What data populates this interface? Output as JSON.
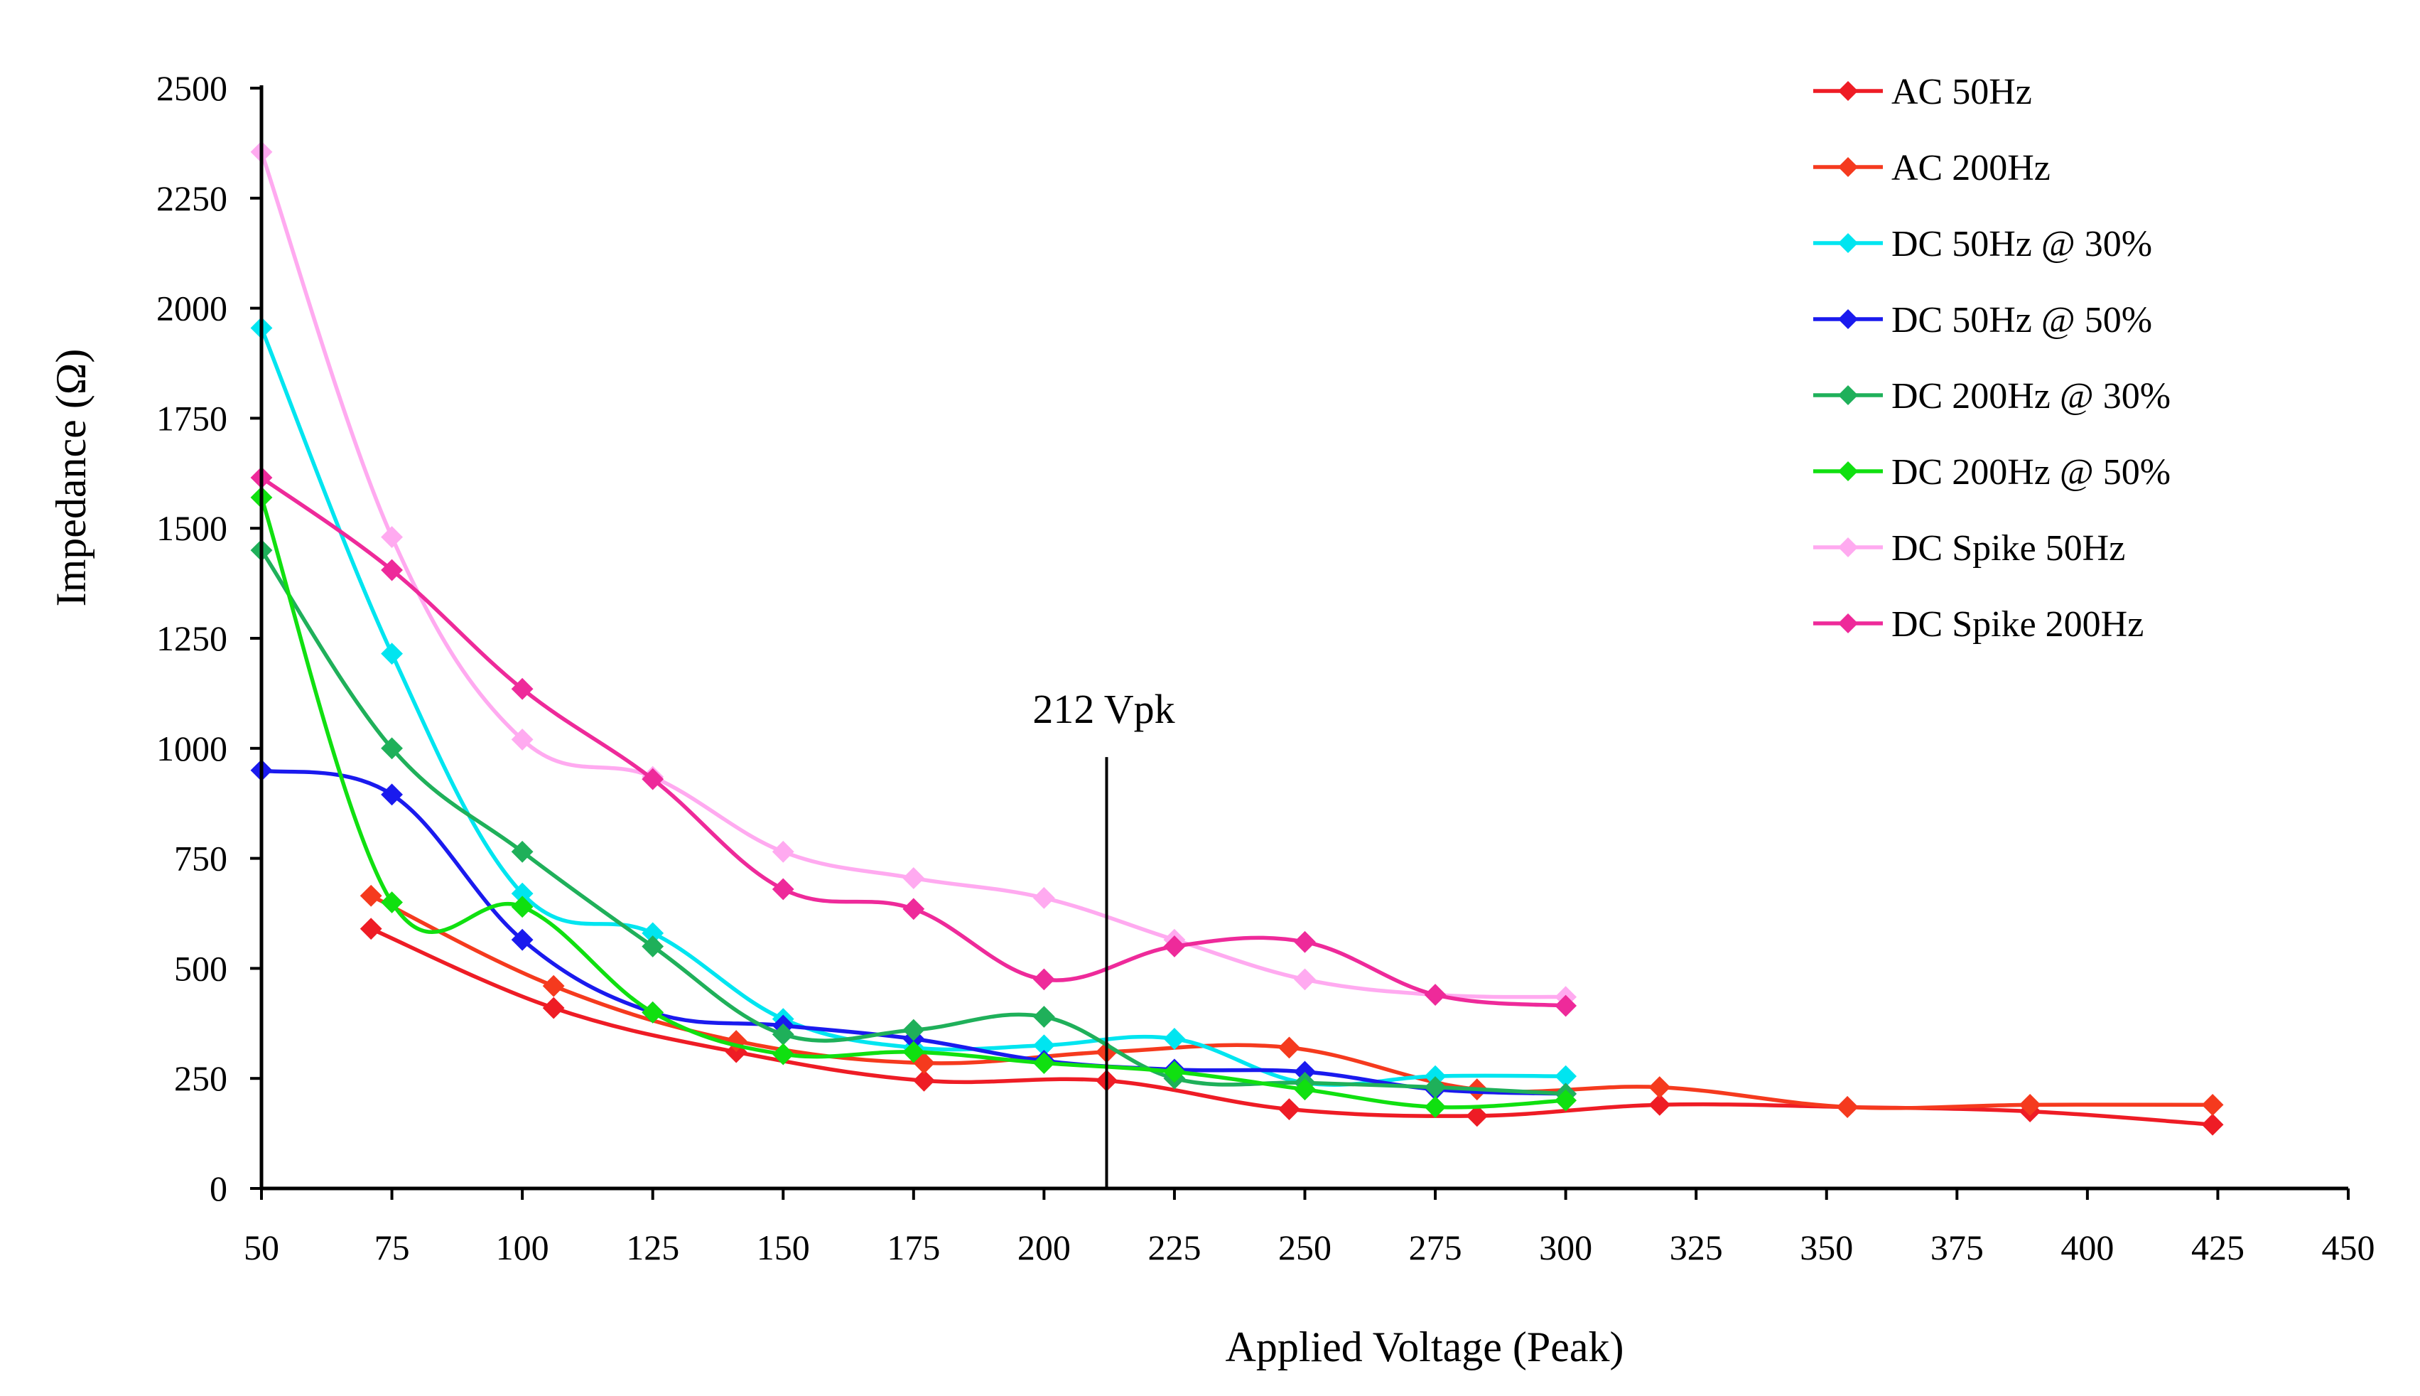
{
  "chart_data": {
    "type": "line",
    "title": "",
    "xlabel": "Applied Voltage (Peak)",
    "ylabel": "Impedance (Ω)",
    "xlim": [
      50,
      450
    ],
    "ylim": [
      0,
      2500
    ],
    "xticks": [
      50,
      75,
      100,
      125,
      150,
      175,
      200,
      225,
      250,
      275,
      300,
      325,
      350,
      375,
      400,
      425,
      450
    ],
    "yticks": [
      0,
      250,
      500,
      750,
      1000,
      1250,
      1500,
      1750,
      2000,
      2250,
      2500
    ],
    "grid": false,
    "legend_position": "top-right",
    "annotation": {
      "label": "212 Vpk",
      "x": 212,
      "y_top": 980
    },
    "series": [
      {
        "name": "AC 50Hz",
        "color": "#ee1c25",
        "x": [
          71,
          106,
          141,
          177,
          212,
          247,
          283,
          318,
          354,
          389,
          424
        ],
        "y": [
          590,
          410,
          310,
          245,
          245,
          180,
          165,
          190,
          185,
          175,
          145
        ]
      },
      {
        "name": "AC 200Hz",
        "color": "#f53a1e",
        "x": [
          71,
          106,
          141,
          177,
          212,
          247,
          283,
          318,
          354,
          389,
          424
        ],
        "y": [
          665,
          460,
          335,
          285,
          310,
          320,
          225,
          230,
          185,
          190,
          190
        ]
      },
      {
        "name": "DC 50Hz @ 30%",
        "color": "#00e5f0",
        "x": [
          50,
          75,
          100,
          125,
          150,
          175,
          200,
          225,
          250,
          275,
          300
        ],
        "y": [
          1955,
          1215,
          670,
          580,
          385,
          320,
          325,
          340,
          240,
          255,
          255
        ]
      },
      {
        "name": "DC 50Hz @ 50%",
        "color": "#1a1aee",
        "x": [
          50,
          75,
          100,
          125,
          150,
          175,
          200,
          225,
          250,
          275,
          300
        ],
        "y": [
          950,
          895,
          565,
          400,
          370,
          340,
          290,
          270,
          265,
          225,
          215
        ]
      },
      {
        "name": "DC 200Hz @ 30%",
        "color": "#1fb05a",
        "x": [
          50,
          75,
          100,
          125,
          150,
          175,
          200,
          225,
          250,
          275,
          300
        ],
        "y": [
          1450,
          1000,
          765,
          550,
          350,
          360,
          390,
          250,
          240,
          230,
          215
        ]
      },
      {
        "name": "DC 200Hz @ 50%",
        "color": "#10e010",
        "x": [
          50,
          75,
          100,
          125,
          150,
          175,
          200,
          225,
          250,
          275,
          300
        ],
        "y": [
          1570,
          650,
          640,
          400,
          305,
          310,
          285,
          265,
          225,
          185,
          200
        ]
      },
      {
        "name": "DC Spike 50Hz",
        "color": "#ffaaf0",
        "x": [
          50,
          75,
          100,
          125,
          150,
          175,
          200,
          225,
          250,
          275,
          300
        ],
        "y": [
          2355,
          1480,
          1020,
          935,
          765,
          705,
          660,
          565,
          475,
          440,
          435
        ]
      },
      {
        "name": "DC Spike 200Hz",
        "color": "#ee2a9a",
        "x": [
          50,
          75,
          100,
          125,
          150,
          175,
          200,
          225,
          250,
          275,
          300
        ],
        "y": [
          1615,
          1405,
          1135,
          930,
          680,
          635,
          475,
          550,
          560,
          440,
          415
        ]
      }
    ]
  }
}
